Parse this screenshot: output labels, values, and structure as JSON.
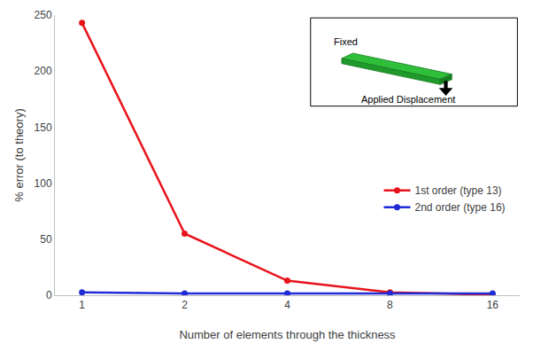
{
  "chart_data": {
    "type": "line",
    "x_label": "Number of elements through the thickness",
    "y_label": "% error (to theory)",
    "categories": [
      "1",
      "2",
      "4",
      "8",
      "16"
    ],
    "series": [
      {
        "name": "1st order (type 13)",
        "color": "#e8141b",
        "marker": "circle",
        "line_style": "solid",
        "values": [
          243,
          55,
          13,
          2.5,
          0.5
        ]
      },
      {
        "name": "2nd order (type 16)",
        "color": "#1f2bd6",
        "marker": "circle",
        "line_style": "solid",
        "values": [
          2.5,
          1.5,
          1.5,
          1.5,
          1.5
        ]
      }
    ],
    "ylim": [
      0,
      250
    ],
    "yticks": [
      0,
      50,
      100,
      150,
      200,
      250
    ],
    "grid": false,
    "legend": "right",
    "annotations": [
      "Fixed",
      "Applied Displacement"
    ]
  }
}
